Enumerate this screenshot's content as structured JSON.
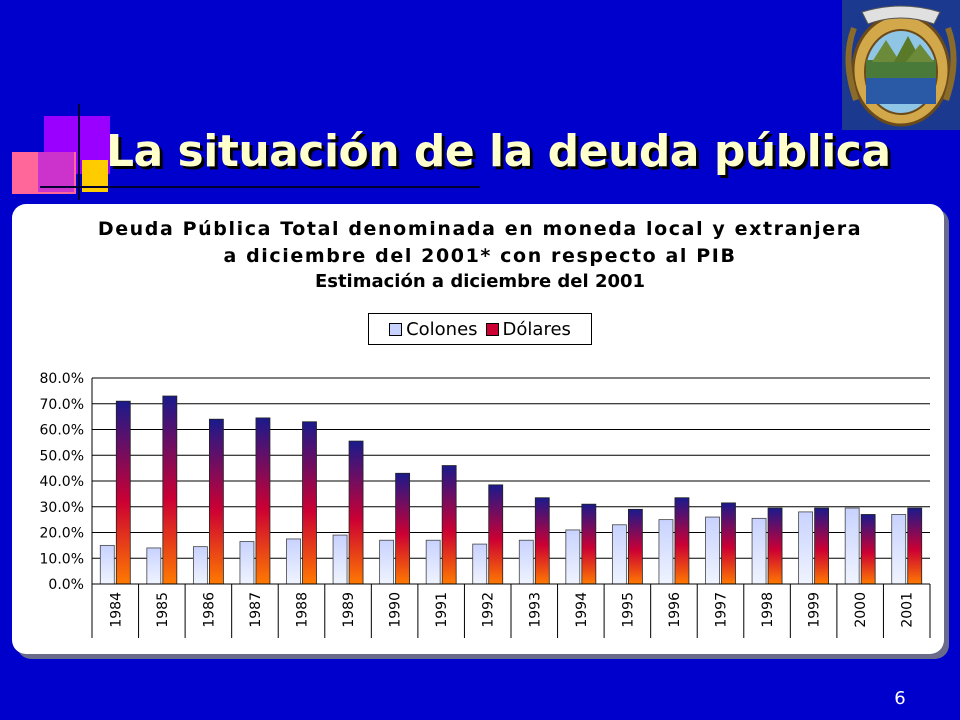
{
  "slide": {
    "title": "La situación de la deuda pública",
    "page_number": "6"
  },
  "colors": {
    "background": "#0000cc",
    "title_text": "#ffffcc",
    "colones": "#c8d2ff",
    "dolares_top": "#1a1a8c",
    "dolares_mid": "#cc0033",
    "dolares_bottom": "#ff7a00"
  },
  "chart_data": {
    "type": "bar",
    "title": "Deuda Pública Total denominada en moneda local y extranjera",
    "title_line2": "a diciembre del 2001* con respecto al PIB",
    "subtitle": "Estimación a diciembre del 2001",
    "legend": [
      "Colones",
      "Dólares"
    ],
    "legend_position": "top-center",
    "categories": [
      "1984",
      "1985",
      "1986",
      "1987",
      "1988",
      "1989",
      "1990",
      "1991",
      "1992",
      "1993",
      "1994",
      "1995",
      "1996",
      "1997",
      "1998",
      "1999",
      "2000",
      "2001"
    ],
    "series": [
      {
        "name": "Colones",
        "values": [
          15.0,
          14.0,
          14.5,
          16.5,
          17.5,
          19.0,
          17.0,
          17.0,
          15.5,
          17.0,
          21.0,
          23.0,
          25.0,
          26.0,
          25.5,
          28.0,
          29.5,
          27.0
        ]
      },
      {
        "name": "Dólares",
        "values": [
          71.0,
          73.0,
          64.0,
          64.5,
          63.0,
          55.5,
          43.0,
          46.0,
          38.5,
          33.5,
          31.0,
          29.0,
          33.5,
          31.5,
          29.5,
          29.5,
          27.0,
          29.5
        ]
      }
    ],
    "ylim": [
      0,
      80
    ],
    "yticks": [
      "0.0%",
      "10.0%",
      "20.0%",
      "30.0%",
      "40.0%",
      "50.0%",
      "60.0%",
      "70.0%",
      "80.0%"
    ],
    "grid": true
  }
}
